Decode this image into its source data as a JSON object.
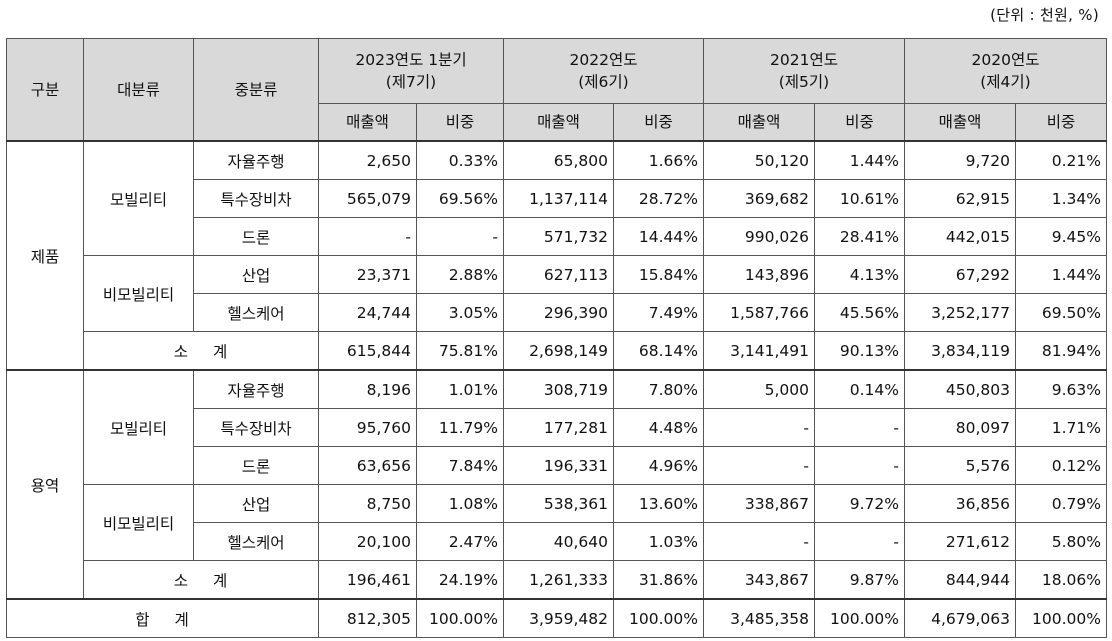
{
  "unit_label": "(단위 : 천원, %)",
  "header": {
    "col_gubun": "구분",
    "col_major": "대분류",
    "col_middle": "중분류",
    "periods": [
      {
        "year": "2023연도 1분기",
        "term": "(제7기)"
      },
      {
        "year": "2022연도",
        "term": "(제6기)"
      },
      {
        "year": "2021연도",
        "term": "(제5기)"
      },
      {
        "year": "2020연도",
        "term": "(제4기)"
      }
    ],
    "sub_sales": "매출액",
    "sub_ratio": "비중"
  },
  "groups": {
    "product": "제품",
    "service": "용역",
    "mobility": "모빌리티",
    "non_mobility": "비모빌리티",
    "subtotal": "소 계",
    "total": "합 계"
  },
  "rows": [
    {
      "mid": "자율주행",
      "v": [
        "2,650",
        "0.33%",
        "65,800",
        "1.66%",
        "50,120",
        "1.44%",
        "9,720",
        "0.21%"
      ]
    },
    {
      "mid": "특수장비차",
      "v": [
        "565,079",
        "69.56%",
        "1,137,114",
        "28.72%",
        "369,682",
        "10.61%",
        "62,915",
        "1.34%"
      ]
    },
    {
      "mid": "드론",
      "v": [
        "-",
        "-",
        "571,732",
        "14.44%",
        "990,026",
        "28.41%",
        "442,015",
        "9.45%"
      ]
    },
    {
      "mid": "산업",
      "v": [
        "23,371",
        "2.88%",
        "627,113",
        "15.84%",
        "143,896",
        "4.13%",
        "67,292",
        "1.44%"
      ]
    },
    {
      "mid": "헬스케어",
      "v": [
        "24,744",
        "3.05%",
        "296,390",
        "7.49%",
        "1,587,766",
        "45.56%",
        "3,252,177",
        "69.50%"
      ]
    },
    {
      "v": [
        "615,844",
        "75.81%",
        "2,698,149",
        "68.14%",
        "3,141,491",
        "90.13%",
        "3,834,119",
        "81.94%"
      ]
    },
    {
      "mid": "자율주행",
      "v": [
        "8,196",
        "1.01%",
        "308,719",
        "7.80%",
        "5,000",
        "0.14%",
        "450,803",
        "9.63%"
      ]
    },
    {
      "mid": "특수장비차",
      "v": [
        "95,760",
        "11.79%",
        "177,281",
        "4.48%",
        "-",
        "-",
        "80,097",
        "1.71%"
      ]
    },
    {
      "mid": "드론",
      "v": [
        "63,656",
        "7.84%",
        "196,331",
        "4.96%",
        "-",
        "-",
        "5,576",
        "0.12%"
      ]
    },
    {
      "mid": "산업",
      "v": [
        "8,750",
        "1.08%",
        "538,361",
        "13.60%",
        "338,867",
        "9.72%",
        "36,856",
        "0.79%"
      ]
    },
    {
      "mid": "헬스케어",
      "v": [
        "20,100",
        "2.47%",
        "40,640",
        "1.03%",
        "-",
        "-",
        "271,612",
        "5.80%"
      ]
    },
    {
      "v": [
        "196,461",
        "24.19%",
        "1,261,333",
        "31.86%",
        "343,867",
        "9.87%",
        "844,944",
        "18.06%"
      ]
    },
    {
      "v": [
        "812,305",
        "100.00%",
        "3,959,482",
        "100.00%",
        "3,485,358",
        "100.00%",
        "4,679,063",
        "100.00%"
      ]
    }
  ]
}
